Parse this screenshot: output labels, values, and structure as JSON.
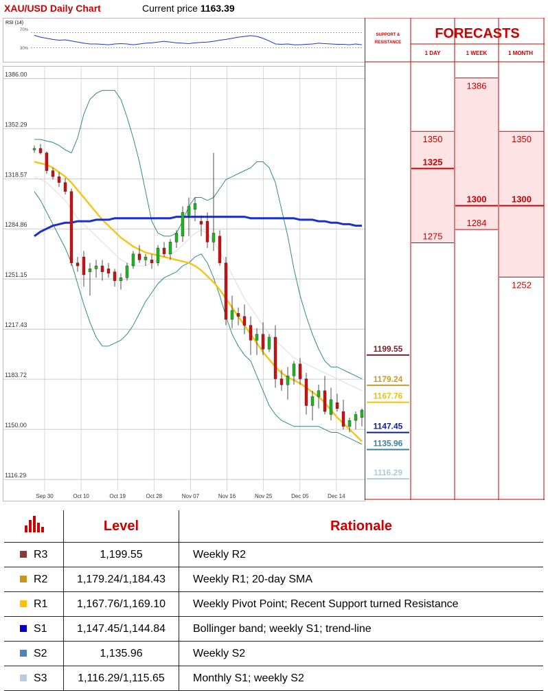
{
  "header": {
    "title": "XAU/USD Daily Chart",
    "price_label": "Current price",
    "price_value": "1163.39"
  },
  "rsi": {
    "label": "RSI (14)",
    "level_high": "70%",
    "level_low": "30%",
    "values": [
      63,
      58,
      55,
      52,
      50,
      51,
      48,
      45,
      42,
      40,
      40,
      39,
      38,
      40,
      41,
      40,
      38,
      40,
      42,
      43,
      45,
      47,
      45,
      43,
      42,
      41,
      43,
      44,
      45,
      47,
      50,
      52,
      55,
      58,
      60,
      62,
      60,
      55,
      48,
      40,
      39,
      40,
      38,
      38,
      39,
      40,
      42,
      41,
      40,
      39,
      39,
      38,
      40,
      38
    ]
  },
  "chart_data": {
    "type": "candlestick",
    "title": "XAU/USD Daily Chart",
    "yticks": [
      "1386.00",
      "1352.29",
      "1318.57",
      "1284.86",
      "1251.15",
      "1217.43",
      "1183.72",
      "1150.00",
      "1116.29"
    ],
    "ylim": [
      1102,
      1394
    ],
    "xticks": [
      "Sep 30",
      "Oct 10",
      "Oct 19",
      "Oct 28",
      "Nov 07",
      "Nov 16",
      "Nov 25",
      "Dec 05",
      "Dec 14"
    ],
    "candles": [
      [
        1338,
        1341,
        1336,
        1339
      ],
      [
        1339,
        1342,
        1335,
        1336
      ],
      [
        1336,
        1337,
        1322,
        1324
      ],
      [
        1324,
        1326,
        1318,
        1320
      ],
      [
        1320,
        1323,
        1313,
        1316
      ],
      [
        1316,
        1319,
        1308,
        1310
      ],
      [
        1310,
        1312,
        1260,
        1262
      ],
      [
        1262,
        1266,
        1256,
        1260
      ],
      [
        1266,
        1270,
        1246,
        1254
      ],
      [
        1256,
        1262,
        1240,
        1258
      ],
      [
        1258,
        1264,
        1252,
        1260
      ],
      [
        1260,
        1264,
        1250,
        1256
      ],
      [
        1258,
        1262,
        1252,
        1255
      ],
      [
        1256,
        1258,
        1246,
        1250
      ],
      [
        1250,
        1255,
        1244,
        1252
      ],
      [
        1252,
        1262,
        1250,
        1260
      ],
      [
        1260,
        1270,
        1258,
        1268
      ],
      [
        1268,
        1274,
        1262,
        1264
      ],
      [
        1264,
        1268,
        1260,
        1266
      ],
      [
        1264,
        1268,
        1258,
        1262
      ],
      [
        1262,
        1274,
        1260,
        1272
      ],
      [
        1272,
        1276,
        1266,
        1268
      ],
      [
        1268,
        1278,
        1264,
        1276
      ],
      [
        1276,
        1284,
        1272,
        1282
      ],
      [
        1280,
        1300,
        1276,
        1296
      ],
      [
        1294,
        1306,
        1280,
        1300
      ],
      [
        1298,
        1306,
        1290,
        1302
      ],
      [
        1290,
        1294,
        1280,
        1288
      ],
      [
        1290,
        1296,
        1272,
        1276
      ],
      [
        1276,
        1336,
        1270,
        1282
      ],
      [
        1280,
        1284,
        1260,
        1262
      ],
      [
        1262,
        1266,
        1220,
        1224
      ],
      [
        1224,
        1240,
        1218,
        1230
      ],
      [
        1228,
        1232,
        1220,
        1226
      ],
      [
        1226,
        1234,
        1214,
        1220
      ],
      [
        1220,
        1226,
        1200,
        1210
      ],
      [
        1210,
        1218,
        1200,
        1214
      ],
      [
        1214,
        1222,
        1200,
        1204
      ],
      [
        1204,
        1214,
        1202,
        1212
      ],
      [
        1212,
        1220,
        1178,
        1184
      ],
      [
        1184,
        1190,
        1176,
        1180
      ],
      [
        1180,
        1192,
        1170,
        1186
      ],
      [
        1186,
        1196,
        1180,
        1194
      ],
      [
        1194,
        1198,
        1180,
        1184
      ],
      [
        1184,
        1188,
        1160,
        1166
      ],
      [
        1166,
        1176,
        1156,
        1172
      ],
      [
        1172,
        1180,
        1164,
        1176
      ],
      [
        1176,
        1186,
        1160,
        1162
      ],
      [
        1160,
        1178,
        1156,
        1170
      ],
      [
        1168,
        1174,
        1162,
        1164
      ],
      [
        1162,
        1170,
        1150,
        1152
      ],
      [
        1152,
        1158,
        1148,
        1156
      ],
      [
        1156,
        1162,
        1150,
        1160
      ],
      [
        1158,
        1164,
        1152,
        1163
      ]
    ],
    "sma_yellow": [
      1330,
      1329,
      1328,
      1326,
      1323,
      1320,
      1316,
      1311,
      1306,
      1301,
      1296,
      1291,
      1287,
      1283,
      1279,
      1276,
      1273,
      1271,
      1269,
      1268,
      1267,
      1266,
      1265,
      1264,
      1263,
      1262,
      1260,
      1257,
      1253,
      1249,
      1244,
      1238,
      1232,
      1226,
      1220,
      1214,
      1208,
      1202,
      1197,
      1192,
      1188,
      1185,
      1183,
      1181,
      1178,
      1175,
      1172,
      1168,
      1163,
      1158,
      1154,
      1150,
      1146,
      1142
    ],
    "sma_blue": [
      1280,
      1283,
      1285,
      1287,
      1288,
      1289,
      1289,
      1290,
      1290,
      1290,
      1291,
      1291,
      1291,
      1292,
      1292,
      1292,
      1292,
      1292,
      1292,
      1292,
      1292,
      1292,
      1292,
      1293,
      1293,
      1293,
      1293,
      1293,
      1293,
      1293,
      1293,
      1293,
      1293,
      1293,
      1293,
      1292,
      1292,
      1292,
      1292,
      1292,
      1292,
      1292,
      1292,
      1291,
      1291,
      1291,
      1290,
      1290,
      1289,
      1289,
      1288,
      1288,
      1287,
      1287
    ],
    "bb_upper": [
      1345,
      1345,
      1344,
      1343,
      1341,
      1338,
      1336,
      1346,
      1362,
      1372,
      1376,
      1378,
      1378,
      1378,
      1372,
      1360,
      1346,
      1330,
      1310,
      1290,
      1282,
      1280,
      1280,
      1282,
      1290,
      1300,
      1306,
      1306,
      1304,
      1306,
      1312,
      1318,
      1320,
      1322,
      1324,
      1326,
      1330,
      1330,
      1326,
      1316,
      1298,
      1280,
      1258,
      1240,
      1226,
      1214,
      1204,
      1196,
      1192,
      1192,
      1190,
      1188,
      1186,
      1184
    ],
    "bb_lower": [
      1310,
      1304,
      1296,
      1288,
      1280,
      1272,
      1262,
      1248,
      1234,
      1222,
      1212,
      1206,
      1206,
      1208,
      1210,
      1214,
      1220,
      1228,
      1236,
      1242,
      1248,
      1252,
      1254,
      1256,
      1260,
      1262,
      1266,
      1268,
      1262,
      1252,
      1240,
      1226,
      1214,
      1206,
      1200,
      1196,
      1186,
      1176,
      1166,
      1160,
      1156,
      1154,
      1152,
      1152,
      1152,
      1152,
      1152,
      1150,
      1148,
      1148,
      1146,
      1144,
      1142,
      1140
    ],
    "sma_grey": [
      1320,
      1318,
      1316,
      1312,
      1308,
      1304,
      1298,
      1292,
      1288,
      1284,
      1280,
      1276,
      1272,
      1268,
      1264,
      1262,
      1260,
      1260,
      1260,
      1262,
      1264,
      1266,
      1268,
      1270,
      1274,
      1278,
      1282,
      1284,
      1282,
      1276,
      1270,
      1262,
      1254,
      1246,
      1238,
      1232,
      1226,
      1220,
      1214,
      1210,
      1206,
      1202,
      1198,
      1196,
      1194,
      1192,
      1190,
      1188,
      1186,
      1184,
      1182,
      1180,
      1178,
      1176
    ],
    "levels": [
      {
        "value": 1199.55,
        "label": "1199.55",
        "color": "#7a1f2b"
      },
      {
        "value": 1179.24,
        "label": "1179.24",
        "color": "#c99a2e"
      },
      {
        "value": 1167.76,
        "label": "1167.76",
        "color": "#f0c400"
      },
      {
        "value": 1147.45,
        "label": "1147.45",
        "color": "#0b1fa8"
      },
      {
        "value": 1135.96,
        "label": "1135.96",
        "color": "#3f7d9e"
      },
      {
        "value": 1116.29,
        "label": "1116.29",
        "color": "#a9cfd8"
      }
    ]
  },
  "forecast": {
    "sr_header": "SUPPORT & RESISTANCE",
    "title": "FORECASTS",
    "col_day": "1 DAY",
    "col_week": "1 WEEK",
    "col_month": "1 MONTH",
    "day_high": "1350",
    "day_mid": "1325",
    "day_low": "1275",
    "week_high": "1386",
    "week_mid": "1300",
    "week_low": "1284",
    "month_high": "1350",
    "month_mid": "1300",
    "month_low": "1252"
  },
  "table": {
    "h_level": "Level",
    "h_rationale": "Rationale",
    "rows": [
      {
        "name": "R3",
        "level": "1,199.55",
        "rationale": "Weekly R2",
        "color": "#8b3a3a"
      },
      {
        "name": "R2",
        "level": "1,179.24/1,184.43",
        "rationale": "Weekly R1; 20-day SMA",
        "color": "#c9961a"
      },
      {
        "name": "R1",
        "level": "1,167.76/1,169.10",
        "rationale": "Weekly Pivot Point; Recent Support turned Resistance",
        "color": "#ffc000"
      },
      {
        "name": "S1",
        "level": "1,147.45/1,144.84",
        "rationale": "Bollinger band; weekly S1; trend-line",
        "color": "#0000cc"
      },
      {
        "name": "S2",
        "level": "1,135.96",
        "rationale": "Weekly S2",
        "color": "#4f81bd"
      },
      {
        "name": "S3",
        "level": "1,116.29/1,115.65",
        "rationale": "Monthly S1; weekly S2",
        "color": "#b8cce4"
      }
    ]
  }
}
